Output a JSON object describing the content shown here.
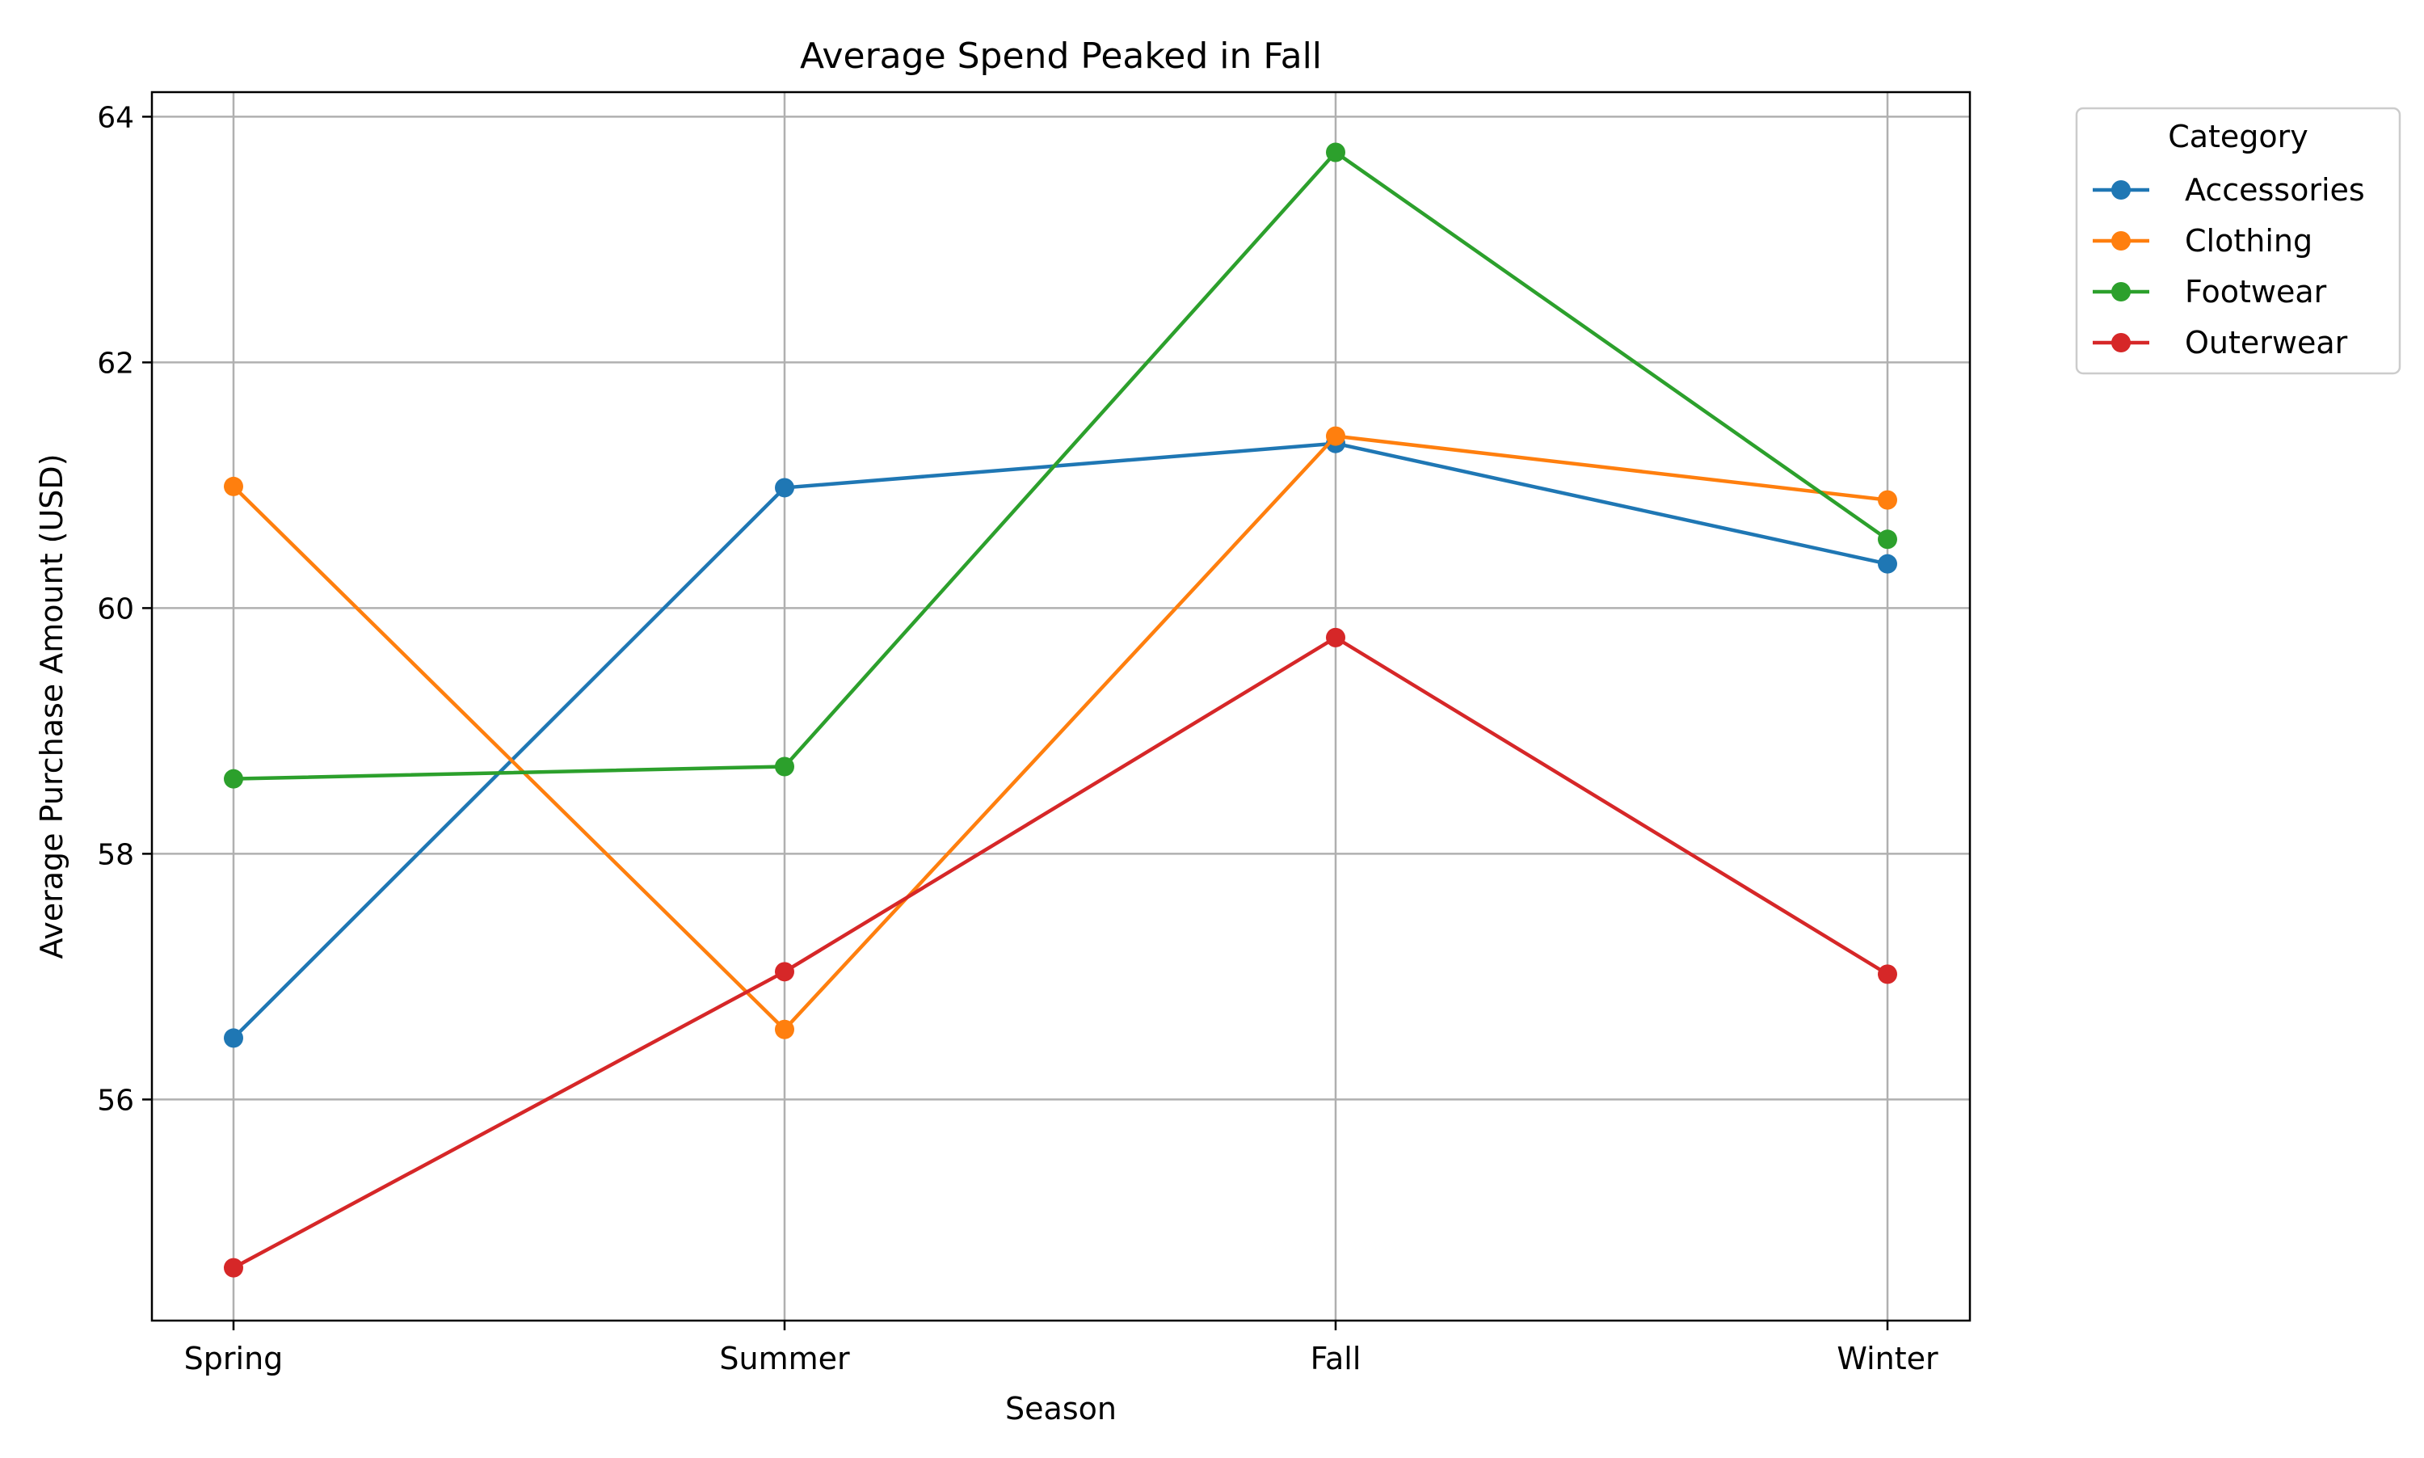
{
  "chart_data": {
    "type": "line",
    "title": "Average Spend Peaked in Fall",
    "xlabel": "Season",
    "ylabel": "Average Purchase Amount (USD)",
    "categories": [
      "Spring",
      "Summer",
      "Fall",
      "Winter"
    ],
    "ylim": [
      54.2,
      64.2
    ],
    "yticks": [
      56,
      58,
      60,
      62,
      64
    ],
    "grid": true,
    "legend": {
      "title": "Category",
      "placement": "outside top-right"
    },
    "series": [
      {
        "name": "Accessories",
        "color": "#1f77b4",
        "values": [
          56.5,
          60.98,
          61.34,
          60.36
        ]
      },
      {
        "name": "Clothing",
        "color": "#ff7f0e",
        "values": [
          60.99,
          56.57,
          61.4,
          60.88
        ]
      },
      {
        "name": "Footwear",
        "color": "#2ca02c",
        "values": [
          58.61,
          58.71,
          63.71,
          60.56
        ]
      },
      {
        "name": "Outerwear",
        "color": "#d62728",
        "values": [
          54.63,
          57.04,
          59.76,
          57.02
        ]
      }
    ]
  }
}
